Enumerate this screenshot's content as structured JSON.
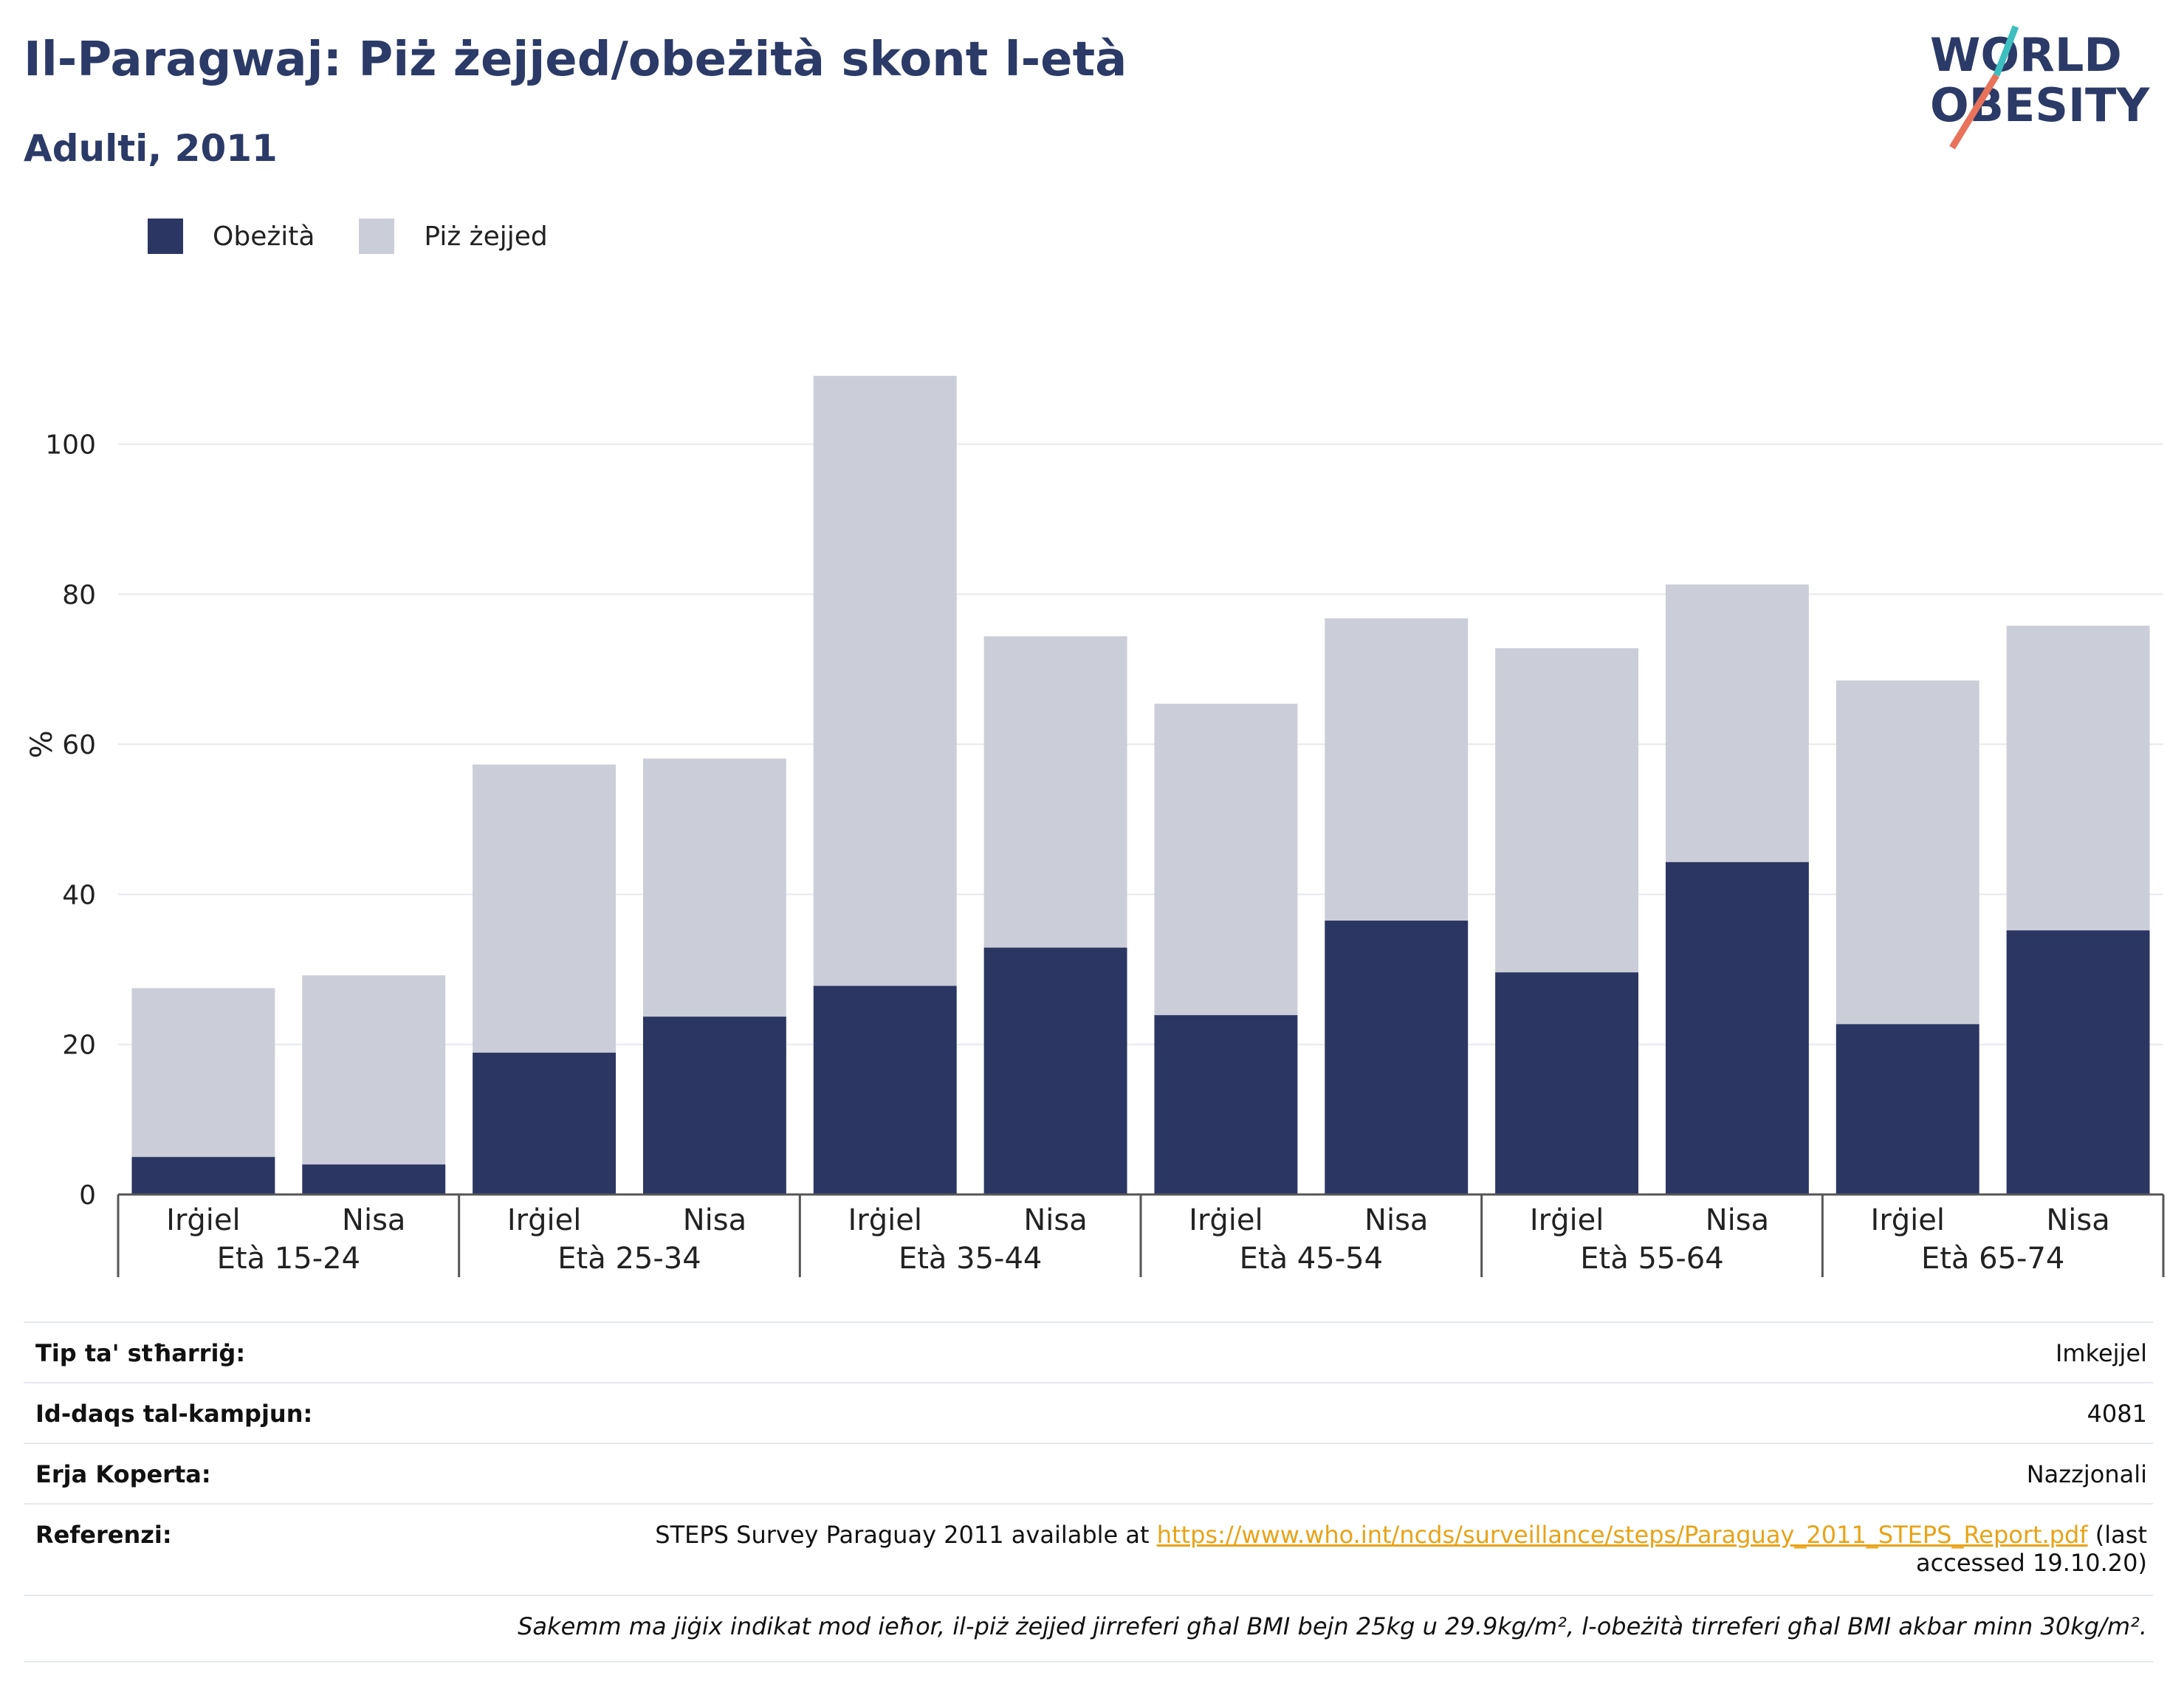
{
  "title": "Il-Paragwaj: Piż żejjed/obeżità skont l-età",
  "subtitle": "Adulti, 2011",
  "logo": {
    "line1": "WORLD",
    "line2": "OBESITY"
  },
  "legend": [
    {
      "label": "Obeżità",
      "color": "#2b3663"
    },
    {
      "label": "Piż żejjed",
      "color": "#cbcdd8"
    }
  ],
  "chart_data": {
    "type": "bar",
    "stacked": true,
    "ylabel": "%",
    "ylim": [
      0,
      110
    ],
    "yticks": [
      0,
      20,
      40,
      60,
      80,
      100
    ],
    "grid": true,
    "legend_position": "top-left",
    "groups": [
      "Età 15-24",
      "Età 25-34",
      "Età 35-44",
      "Età 45-54",
      "Età 55-64",
      "Età 65-74"
    ],
    "categories": [
      "Irġiel",
      "Nisa",
      "Irġiel",
      "Nisa",
      "Irġiel",
      "Nisa",
      "Irġiel",
      "Nisa",
      "Irġiel",
      "Nisa",
      "Irġiel",
      "Nisa"
    ],
    "series": [
      {
        "name": "Obeżità",
        "color": "#2b3663",
        "values": [
          5.0,
          4.0,
          18.9,
          23.7,
          27.8,
          32.9,
          23.9,
          36.5,
          29.6,
          44.3,
          22.7,
          35.2
        ]
      },
      {
        "name": "Piż żejjed",
        "color": "#cbcdd8",
        "values": [
          22.5,
          25.2,
          38.4,
          34.4,
          81.3,
          41.5,
          41.5,
          40.3,
          43.2,
          37.0,
          45.8,
          40.6
        ]
      }
    ]
  },
  "info": {
    "rows": [
      {
        "key": "Tip ta' stħarriġ:",
        "value": "Imkejjel"
      },
      {
        "key": "Id-daqs tal-kampjun:",
        "value": "4081"
      },
      {
        "key": "Erja Koperta:",
        "value": "Nazzjonali"
      }
    ],
    "reference": {
      "key": "Referenzi:",
      "prefix": "STEPS Survey Paraguay 2011 available at ",
      "link": "https://www.who.int/ncds/surveillance/steps/Paraguay_2011_STEPS_Report.pdf",
      "suffix": " (last accessed 19.10.20)"
    },
    "note": "Sakemm ma jiġix indikat mod ieħor, il-piż żejjed jirreferi għal BMI bejn 25kg u 29.9kg/m², l-obeżità tirreferi għal BMI akbar minn 30kg/m²."
  }
}
